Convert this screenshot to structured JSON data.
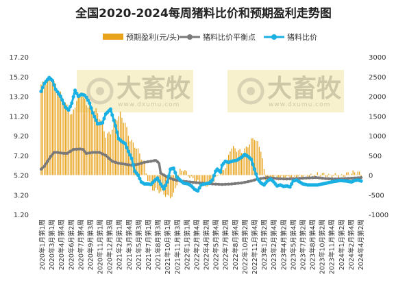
{
  "chart_data": {
    "type": "bar+line",
    "title": "全国2020-2024每周猪料比价和预期盈利走势图",
    "legend": [
      {
        "name": "预期盈利(元/头)",
        "color": "#e8a21c",
        "kind": "bar"
      },
      {
        "name": "猪料比价平衡点",
        "color": "#7a7a7a",
        "kind": "line"
      },
      {
        "name": "猪料比价",
        "color": "#1ab0e3",
        "kind": "line"
      }
    ],
    "left_axis": {
      "min": 1.2,
      "max": 17.2,
      "ticks": [
        "17.20",
        "15.20",
        "13.20",
        "11.20",
        "9.20",
        "7.20",
        "5.20",
        "3.20",
        "1.20"
      ]
    },
    "right_axis": {
      "min": -1000,
      "max": 3000,
      "ticks": [
        "3000",
        "2500",
        "2000",
        "1500",
        "1000",
        "500",
        "0",
        "-500",
        "-1000"
      ]
    },
    "x_tick_labels": [
      "2020年1月第1周",
      "2020年3月第1周",
      "2020年4月第4周",
      "2020年6月第2周",
      "2020年7月第4周",
      "2020年9月第3周",
      "2020年11月第1周",
      "2020年12月第3周",
      "2021年2月第1周",
      "2021年3月第4周",
      "2021年5月第3周",
      "2021年7月第1周",
      "2021年8月第3周",
      "2021年10月第1周",
      "2021年11月第3周",
      "2022年1月第1周",
      "2022年2月第4周",
      "2022年4月第2周",
      "2022年5月第4周",
      "2022年7月第2周",
      "2022年8月第4周",
      "2022年10月第2周",
      "2022年11月第4周",
      "2023年1月第2周",
      "2023年2月第4周",
      "2023年4月第2周",
      "2023年5月第4周",
      "2023年7月第2周",
      "2023年8月第4周",
      "2023年10月第2周",
      "2023年11月第4周",
      "2024年1月第2周",
      "2024年2月第4周",
      "2024年4月第2周"
    ],
    "watermarks": [
      "大畜牧",
      "大畜牧"
    ],
    "watermark_sub": "www.dxumu.com",
    "profit_keys": [
      [
        0,
        2300
      ],
      [
        3,
        2350
      ],
      [
        6,
        2420
      ],
      [
        9,
        2300
      ],
      [
        14,
        1900
      ],
      [
        19,
        1500
      ],
      [
        22,
        1900
      ],
      [
        25,
        2050
      ],
      [
        28,
        1800
      ],
      [
        31,
        1680
      ],
      [
        34,
        1640
      ],
      [
        37,
        1400
      ],
      [
        40,
        1000
      ],
      [
        43,
        1080
      ],
      [
        46,
        1400
      ],
      [
        49,
        1550
      ],
      [
        52,
        1300
      ],
      [
        55,
        900
      ],
      [
        58,
        750
      ],
      [
        61,
        550
      ],
      [
        64,
        250
      ],
      [
        66,
        -100
      ],
      [
        68,
        -300
      ],
      [
        70,
        -380
      ],
      [
        72,
        -380
      ],
      [
        75,
        -450
      ],
      [
        79,
        -560
      ],
      [
        82,
        -500
      ],
      [
        84,
        -200
      ],
      [
        86,
        100
      ],
      [
        88,
        150
      ],
      [
        90,
        50
      ],
      [
        93,
        -80
      ],
      [
        96,
        -150
      ],
      [
        99,
        -250
      ],
      [
        102,
        -260
      ],
      [
        106,
        -200
      ],
      [
        108,
        -100
      ],
      [
        110,
        50
      ],
      [
        112,
        80
      ],
      [
        115,
        300
      ],
      [
        117,
        650
      ],
      [
        118,
        700
      ],
      [
        121,
        650
      ],
      [
        124,
        580
      ],
      [
        127,
        680
      ],
      [
        130,
        880
      ],
      [
        132,
        950
      ],
      [
        134,
        800
      ],
      [
        136,
        650
      ],
      [
        137,
        400
      ],
      [
        138,
        100
      ],
      [
        139,
        -100
      ],
      [
        142,
        -80
      ],
      [
        146,
        -70
      ],
      [
        150,
        -90
      ],
      [
        154,
        -60
      ],
      [
        158,
        -50
      ],
      [
        162,
        -40
      ],
      [
        166,
        -30
      ],
      [
        170,
        10
      ],
      [
        174,
        20
      ],
      [
        178,
        -20
      ],
      [
        182,
        -10
      ],
      [
        186,
        -30
      ],
      [
        190,
        40
      ],
      [
        193,
        60
      ],
      [
        196,
        80
      ],
      [
        198,
        -20
      ]
    ],
    "balance_keys": [
      [
        0,
        5.8
      ],
      [
        2,
        6.1
      ],
      [
        4,
        6.6
      ],
      [
        6,
        7.1
      ],
      [
        8,
        7.5
      ],
      [
        10,
        7.5
      ],
      [
        14,
        7.4
      ],
      [
        16,
        7.4
      ],
      [
        20,
        7.8
      ],
      [
        24,
        7.85
      ],
      [
        26,
        7.8
      ],
      [
        28,
        7.4
      ],
      [
        32,
        7.5
      ],
      [
        36,
        7.5
      ],
      [
        40,
        7.2
      ],
      [
        44,
        6.6
      ],
      [
        48,
        6.4
      ],
      [
        52,
        6.3
      ],
      [
        56,
        6.2
      ],
      [
        60,
        6.3
      ],
      [
        64,
        6.5
      ],
      [
        68,
        6.6
      ],
      [
        71,
        6.7
      ],
      [
        73,
        6.4
      ],
      [
        74,
        5.4
      ],
      [
        78,
        5.0
      ],
      [
        82,
        4.75
      ],
      [
        86,
        4.6
      ],
      [
        92,
        4.5
      ],
      [
        98,
        4.4
      ],
      [
        106,
        4.3
      ],
      [
        112,
        4.25
      ],
      [
        118,
        4.3
      ],
      [
        124,
        4.4
      ],
      [
        130,
        4.6
      ],
      [
        134,
        4.8
      ],
      [
        140,
        4.95
      ],
      [
        146,
        4.85
      ],
      [
        152,
        4.8
      ],
      [
        158,
        4.85
      ],
      [
        164,
        4.9
      ],
      [
        170,
        4.95
      ],
      [
        176,
        4.85
      ],
      [
        182,
        4.8
      ],
      [
        188,
        4.85
      ],
      [
        194,
        4.9
      ],
      [
        198,
        4.95
      ]
    ],
    "ratio_keys": [
      [
        0,
        13.7
      ],
      [
        2,
        14.5
      ],
      [
        5,
        15.1
      ],
      [
        7,
        14.8
      ],
      [
        9,
        13.9
      ],
      [
        12,
        13.2
      ],
      [
        15,
        12.1
      ],
      [
        17,
        11.8
      ],
      [
        19,
        12.5
      ],
      [
        21,
        13.8
      ],
      [
        23,
        13.2
      ],
      [
        25,
        13.4
      ],
      [
        27,
        13.3
      ],
      [
        28,
        13.1
      ],
      [
        30,
        12.5
      ],
      [
        32,
        11.5
      ],
      [
        35,
        10.4
      ],
      [
        38,
        10.5
      ],
      [
        40,
        11.4
      ],
      [
        43,
        11.9
      ],
      [
        44,
        11.3
      ],
      [
        46,
        10.2
      ],
      [
        48,
        8.9
      ],
      [
        50,
        8.6
      ],
      [
        52,
        8.4
      ],
      [
        54,
        7.6
      ],
      [
        56,
        6.9
      ],
      [
        58,
        5.6
      ],
      [
        60,
        5.2
      ],
      [
        62,
        4.5
      ],
      [
        64,
        4.3
      ],
      [
        66,
        4.3
      ],
      [
        68,
        4.25
      ],
      [
        70,
        4.6
      ],
      [
        72,
        4.9
      ],
      [
        74,
        4.3
      ],
      [
        76,
        3.8
      ],
      [
        78,
        4.5
      ],
      [
        79,
        5.1
      ],
      [
        80,
        5.8
      ],
      [
        82,
        5.9
      ],
      [
        84,
        5.0
      ],
      [
        86,
        4.7
      ],
      [
        88,
        4.4
      ],
      [
        91,
        4.3
      ],
      [
        93,
        4.1
      ],
      [
        95,
        3.75
      ],
      [
        97,
        3.6
      ],
      [
        99,
        4.2
      ],
      [
        101,
        4.3
      ],
      [
        104,
        4.4
      ],
      [
        106,
        4.7
      ],
      [
        108,
        5.6
      ],
      [
        109,
        5.8
      ],
      [
        111,
        5.5
      ],
      [
        112,
        6.2
      ],
      [
        114,
        6.6
      ],
      [
        116,
        6.5
      ],
      [
        118,
        6.6
      ],
      [
        121,
        6.7
      ],
      [
        124,
        7.0
      ],
      [
        126,
        7.3
      ],
      [
        128,
        7.1
      ],
      [
        130,
        6.8
      ],
      [
        132,
        5.8
      ],
      [
        134,
        4.8
      ],
      [
        136,
        4.4
      ],
      [
        138,
        4.2
      ],
      [
        140,
        4.6
      ],
      [
        142,
        4.8
      ],
      [
        144,
        4.5
      ],
      [
        146,
        4.1
      ],
      [
        148,
        4.2
      ],
      [
        150,
        4.05
      ],
      [
        152,
        4.1
      ],
      [
        154,
        4.0
      ],
      [
        156,
        4.6
      ],
      [
        158,
        4.7
      ],
      [
        160,
        4.5
      ],
      [
        162,
        4.3
      ],
      [
        165,
        4.2
      ],
      [
        168,
        4.2
      ],
      [
        171,
        4.2
      ],
      [
        174,
        4.3
      ],
      [
        177,
        4.4
      ],
      [
        181,
        4.55
      ],
      [
        185,
        4.65
      ],
      [
        189,
        4.6
      ],
      [
        192,
        4.5
      ],
      [
        194,
        4.65
      ],
      [
        196,
        4.7
      ],
      [
        198,
        4.6
      ]
    ],
    "n_weeks": 199
  }
}
